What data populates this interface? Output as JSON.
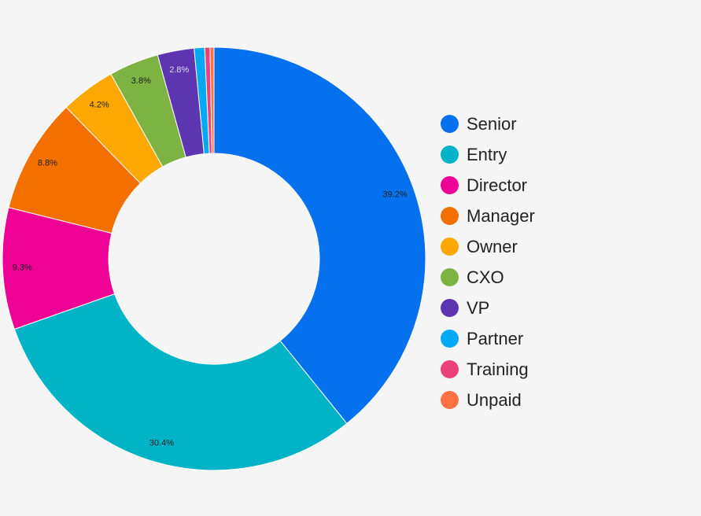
{
  "chart_data": {
    "type": "pie",
    "donut": true,
    "categories": [
      "Senior",
      "Entry",
      "Director",
      "Manager",
      "Owner",
      "CXO",
      "VP",
      "Partner",
      "Training",
      "Unpaid"
    ],
    "values": [
      39.2,
      30.4,
      9.3,
      8.8,
      4.2,
      3.8,
      2.8,
      0.8,
      0.4,
      0.3
    ],
    "labels": [
      "39.2%",
      "30.4%",
      "9.3%",
      "8.8%",
      "4.2%",
      "3.8%",
      "2.8%",
      "",
      "",
      ""
    ],
    "colors": [
      "#0571ee",
      "#00b3c6",
      "#ee0195",
      "#f26f00",
      "#fca801",
      "#7cb342",
      "#5e35b1",
      "#03a9f4",
      "#ec407a",
      "#ff7043"
    ],
    "label_colors": [
      "#222222",
      "#222222",
      "#222222",
      "#222222",
      "#222222",
      "#222222",
      "#dddddd",
      "#222222",
      "#222222",
      "#222222"
    ],
    "legend_position": "right",
    "title": ""
  }
}
